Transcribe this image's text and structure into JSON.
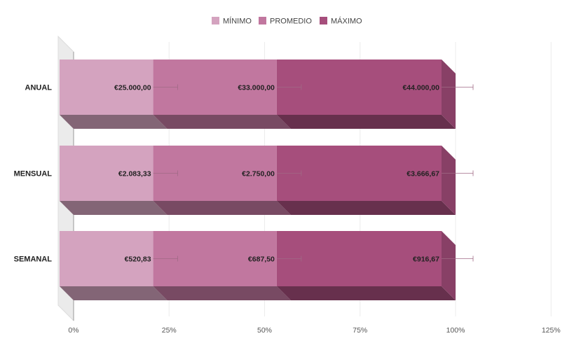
{
  "chart_data": {
    "type": "bar",
    "orientation": "horizontal",
    "stacked": "percent",
    "three_d": true,
    "categories": [
      "ANUAL",
      "MENSUAL",
      "SEMANAL"
    ],
    "series": [
      {
        "name": "MÍNIMO",
        "color": "#d4a3bf",
        "values": [
          25000,
          2083.33,
          520.83
        ],
        "labels": [
          "€25.000,00",
          "€2.083,33",
          "€520,83"
        ]
      },
      {
        "name": "PROMEDIO",
        "color": "#c1779f",
        "values": [
          33000,
          2750,
          687.5
        ],
        "labels": [
          "€33.000,00",
          "€2.750,00",
          "€687,50"
        ]
      },
      {
        "name": "MÁXIMO",
        "color": "#a64e7c",
        "values": [
          44000,
          3666.67,
          916.67
        ],
        "labels": [
          "€44.000,00",
          "€3.666,67",
          "€916,67"
        ]
      }
    ],
    "error_bars": true,
    "xticks": [
      "0%",
      "25%",
      "50%",
      "75%",
      "100%",
      "125%"
    ],
    "xlim": [
      0,
      1.25
    ],
    "grid": true,
    "legend_position": "top"
  }
}
